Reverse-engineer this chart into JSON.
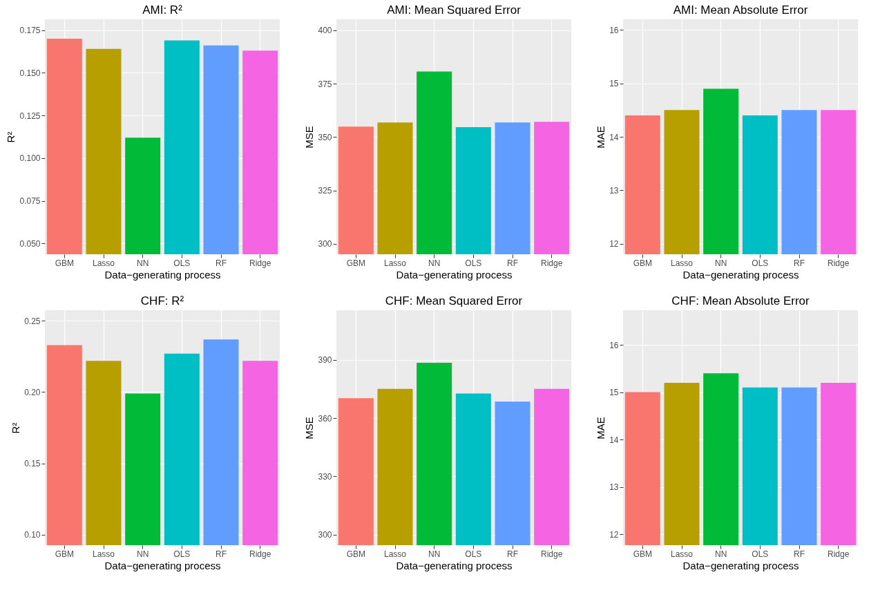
{
  "chart_data": [
    {
      "type": "bar",
      "title": "AMI: R²",
      "xlabel": "Data−generating process",
      "ylabel": "R²",
      "categories": [
        "GBM",
        "Lasso",
        "NN",
        "OLS",
        "RF",
        "Ridge"
      ],
      "values": [
        0.17,
        0.164,
        0.112,
        0.169,
        0.166,
        0.163
      ],
      "colors": [
        "#f8766d",
        "#b79f00",
        "#00ba38",
        "#00bfc4",
        "#619cff",
        "#f564e3"
      ],
      "ylim": [
        0.0437,
        0.1813
      ],
      "yticks": [
        {
          "value": 0.05,
          "label": "0.050"
        },
        {
          "value": 0.075,
          "label": "0.075"
        },
        {
          "value": 0.1,
          "label": "0.100"
        },
        {
          "value": 0.125,
          "label": "0.125"
        },
        {
          "value": 0.15,
          "label": "0.150"
        },
        {
          "value": 0.175,
          "label": "0.175"
        }
      ],
      "grid": true
    },
    {
      "type": "bar",
      "title": "AMI: Mean Squared Error",
      "xlabel": "Data−generating process",
      "ylabel": "MSE",
      "categories": [
        "GBM",
        "Lasso",
        "NN",
        "OLS",
        "RF",
        "Ridge"
      ],
      "values": [
        354.9,
        356.8,
        380.7,
        354.6,
        356.8,
        357.1
      ],
      "colors": [
        "#f8766d",
        "#b79f00",
        "#00ba38",
        "#00bfc4",
        "#619cff",
        "#f564e3"
      ],
      "ylim": [
        295.1,
        405.1
      ],
      "yticks": [
        300,
        325,
        350,
        375,
        400
      ],
      "grid": true
    },
    {
      "type": "bar",
      "title": "AMI: Mean Absolute Error",
      "xlabel": "Data−generating process",
      "ylabel": "MAE",
      "categories": [
        "GBM",
        "Lasso",
        "NN",
        "OLS",
        "RF",
        "Ridge"
      ],
      "values": [
        14.4,
        14.5,
        14.9,
        14.4,
        14.5,
        14.5
      ],
      "colors": [
        "#f8766d",
        "#b79f00",
        "#00ba38",
        "#00bfc4",
        "#619cff",
        "#f564e3"
      ],
      "ylim": [
        11.8,
        16.2
      ],
      "yticks": [
        12,
        13,
        14,
        15,
        16
      ],
      "grid": true
    },
    {
      "type": "bar",
      "title": "CHF: R²",
      "xlabel": "Data−generating process",
      "ylabel": "R²",
      "categories": [
        "GBM",
        "Lasso",
        "NN",
        "OLS",
        "RF",
        "Ridge"
      ],
      "values": [
        0.233,
        0.222,
        0.199,
        0.227,
        0.237,
        0.222
      ],
      "colors": [
        "#f8766d",
        "#b79f00",
        "#00ba38",
        "#00bfc4",
        "#619cff",
        "#f564e3"
      ],
      "ylim": [
        0.0925,
        0.2575
      ],
      "yticks": [
        {
          "value": 0.1,
          "label": "0.10"
        },
        {
          "value": 0.15,
          "label": "0.15"
        },
        {
          "value": 0.2,
          "label": "0.20"
        },
        {
          "value": 0.25,
          "label": "0.25"
        }
      ],
      "grid": true
    },
    {
      "type": "bar",
      "title": "CHF: Mean Squared Error",
      "xlabel": "Data−generating process",
      "ylabel": "MSE",
      "categories": [
        "GBM",
        "Lasso",
        "NN",
        "OLS",
        "RF",
        "Ridge"
      ],
      "values": [
        370.3,
        375.1,
        388.5,
        372.7,
        368.5,
        375.1
      ],
      "colors": [
        "#f8766d",
        "#b79f00",
        "#00ba38",
        "#00bfc4",
        "#619cff",
        "#f564e3"
      ],
      "ylim": [
        294.5,
        415.6
      ],
      "yticks": [
        300,
        330,
        360,
        390
      ],
      "grid": true
    },
    {
      "type": "bar",
      "title": "CHF: Mean Absolute Error",
      "xlabel": "Data−generating process",
      "ylabel": "MAE",
      "categories": [
        "GBM",
        "Lasso",
        "NN",
        "OLS",
        "RF",
        "Ridge"
      ],
      "values": [
        15.0,
        15.2,
        15.4,
        15.1,
        15.1,
        15.2
      ],
      "colors": [
        "#f8766d",
        "#b79f00",
        "#00ba38",
        "#00bfc4",
        "#619cff",
        "#f564e3"
      ],
      "ylim": [
        11.77,
        16.73
      ],
      "yticks": [
        12,
        13,
        14,
        15,
        16
      ],
      "grid": true
    }
  ]
}
